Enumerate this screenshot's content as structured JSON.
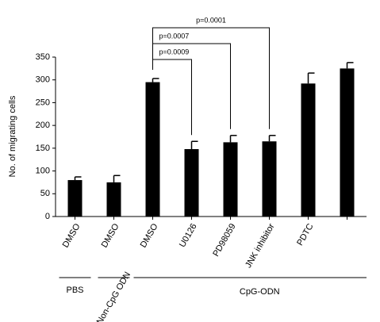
{
  "chart_data": {
    "type": "bar",
    "y_label": "No. of migrating cells",
    "categories": [
      "DMSO",
      "DMSO",
      "DMSO",
      "U0126",
      "PD98059",
      "JNK inhibitor",
      "PDTC",
      null
    ],
    "values": [
      80,
      75,
      295,
      148,
      163,
      165,
      292,
      325
    ],
    "errors": [
      7,
      15,
      8,
      17,
      15,
      13,
      23,
      13
    ],
    "color": "#000000",
    "ylim": [
      0,
      350
    ],
    "yticks": [
      0,
      50,
      100,
      150,
      200,
      250,
      300,
      350
    ],
    "annotations": [
      "p=0.0009",
      "p=0.0007",
      "p=0.0001"
    ],
    "groups": [
      "PBS",
      "Non-CpG ODN",
      "CpG-ODN"
    ]
  }
}
